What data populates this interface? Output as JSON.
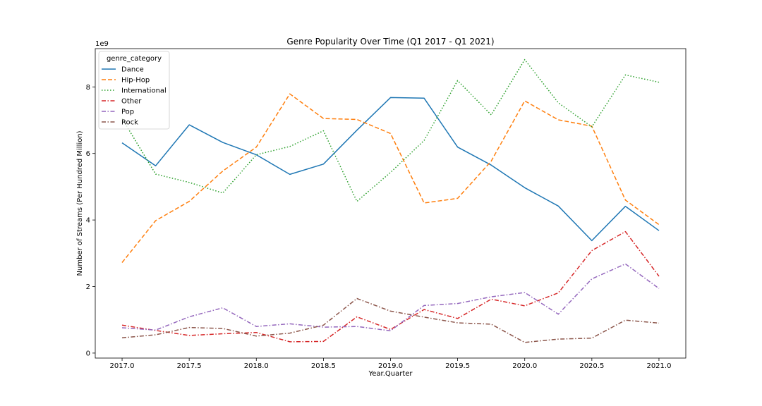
{
  "chart_data": {
    "type": "line",
    "title": "Genre Popularity Over Time (Q1 2017 - Q1 2021)",
    "xlabel": "Year.Quarter",
    "ylabel": "Number of Streams (Per Hundred Million)",
    "y_offset_label": "1e9",
    "xlim": [
      2016.8,
      2021.2
    ],
    "ylim": [
      -0.15,
      9.15
    ],
    "xticks": [
      2017.0,
      2017.5,
      2018.0,
      2018.5,
      2019.0,
      2019.5,
      2020.0,
      2020.5,
      2021.0
    ],
    "xtick_labels": [
      "2017.0",
      "2017.5",
      "2018.0",
      "2018.5",
      "2019.0",
      "2019.5",
      "2020.0",
      "2020.5",
      "2021.0"
    ],
    "yticks": [
      0,
      2,
      4,
      6,
      8
    ],
    "ytick_labels": [
      "0",
      "2",
      "4",
      "6",
      "8"
    ],
    "grid": false,
    "legend": {
      "title": "genre_category",
      "placement": "top-left"
    },
    "x": [
      2017.0,
      2017.25,
      2017.5,
      2017.75,
      2018.0,
      2018.25,
      2018.5,
      2018.75,
      2019.0,
      2019.25,
      2019.5,
      2019.75,
      2020.0,
      2020.25,
      2020.5,
      2020.75,
      2021.0
    ],
    "series": [
      {
        "name": "Dance",
        "color": "#1f77b4",
        "dash": "solid",
        "values": [
          6.32,
          5.63,
          6.86,
          6.33,
          5.96,
          5.37,
          5.68,
          6.7,
          7.68,
          7.66,
          6.19,
          5.65,
          4.97,
          4.42,
          3.38,
          4.41,
          3.68
        ]
      },
      {
        "name": "Hip-Hop",
        "color": "#ff7f0e",
        "dash": "dashed",
        "values": [
          2.72,
          3.98,
          4.56,
          5.47,
          6.19,
          7.79,
          7.05,
          7.02,
          6.6,
          4.51,
          4.65,
          5.77,
          7.58,
          7.01,
          6.82,
          4.6,
          3.86
        ]
      },
      {
        "name": "International",
        "color": "#2ca02c",
        "dash": "dotted",
        "values": [
          7.05,
          5.38,
          5.13,
          4.81,
          5.96,
          6.21,
          6.68,
          4.56,
          5.43,
          6.39,
          8.19,
          7.16,
          8.82,
          7.52,
          6.8,
          8.36,
          8.14
        ]
      },
      {
        "name": "Other",
        "color": "#d62728",
        "dash": "dashdot",
        "values": [
          0.84,
          0.68,
          0.53,
          0.58,
          0.62,
          0.34,
          0.35,
          1.09,
          0.71,
          1.31,
          1.04,
          1.62,
          1.42,
          1.81,
          3.08,
          3.65,
          2.31
        ]
      },
      {
        "name": "Pop",
        "color": "#9467bd",
        "dash": "dashdot",
        "values": [
          0.76,
          0.69,
          1.09,
          1.36,
          0.8,
          0.88,
          0.78,
          0.8,
          0.67,
          1.43,
          1.49,
          1.69,
          1.82,
          1.17,
          2.23,
          2.68,
          1.94
        ]
      },
      {
        "name": "Rock",
        "color": "#8c564b",
        "dash": "dashdot",
        "values": [
          0.46,
          0.55,
          0.77,
          0.74,
          0.51,
          0.6,
          0.84,
          1.64,
          1.26,
          1.08,
          0.91,
          0.87,
          0.32,
          0.42,
          0.45,
          0.99,
          0.9
        ]
      }
    ]
  }
}
